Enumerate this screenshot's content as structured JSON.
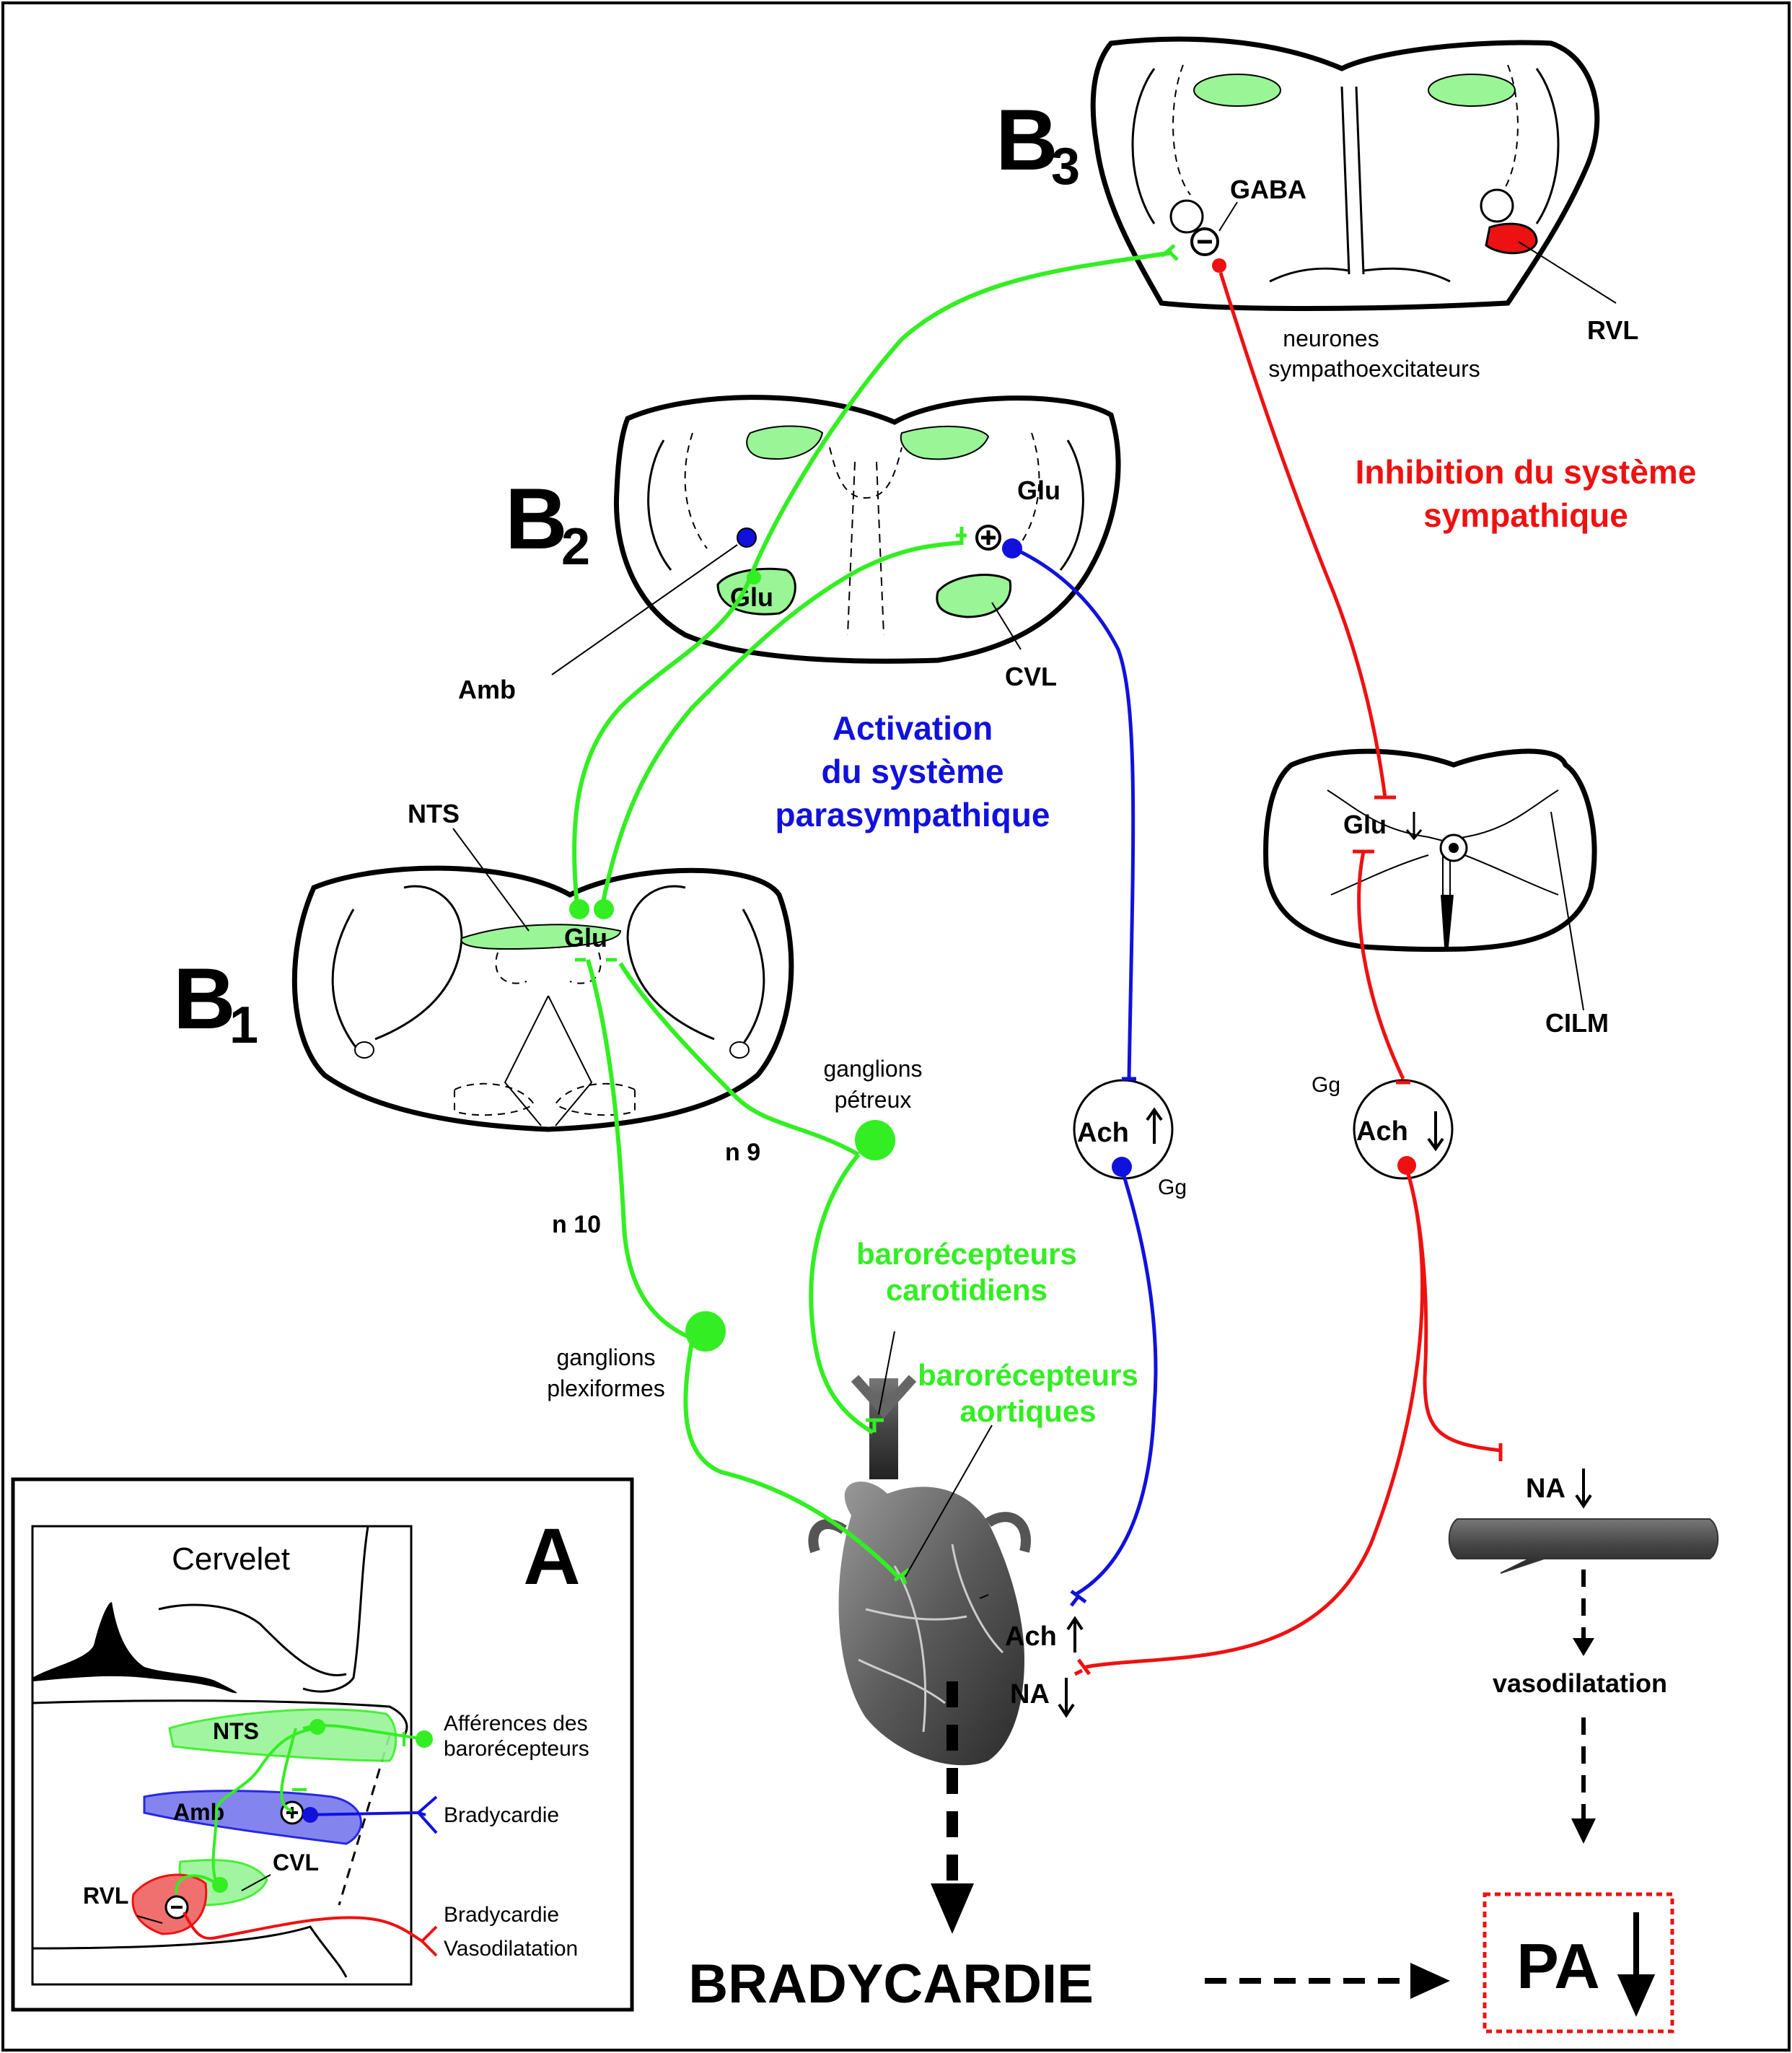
{
  "labels": {
    "b1_letter": "B",
    "b1_sub": "1",
    "b2_letter": "B",
    "b2_sub": "2",
    "b3_letter": "B",
    "b3_sub": "3",
    "a_letter": "A",
    "gaba": "GABA",
    "rvl": "RVL",
    "neurones_line1": "neurones",
    "neurones_line2": "sympathoexcitateurs",
    "inhibition_line1": "Inhibition du système",
    "inhibition_line2": "sympathique",
    "glu_b2": "Glu",
    "glu_b2_cvl": "Glu",
    "cvl": "CVL",
    "amb": "Amb",
    "activation_line1": "Activation",
    "activation_line2": "du système",
    "activation_line3": "parasympathique",
    "nts": "NTS",
    "glu_b1": "Glu",
    "glu_spinal": "Glu",
    "cilm": "CILM",
    "ganglions_petreux_line1": "ganglions",
    "ganglions_petreux_line2": "pétreux",
    "n9": "n 9",
    "n10": "n 10",
    "ach_para": "Ach",
    "gg_para": "Gg",
    "ach_symp": "Ach",
    "gg_symp": "Gg",
    "barorecepteurs_carotidiens_line1": "barorécepteurs",
    "barorecepteurs_carotidiens_line2": "carotidiens",
    "barorecepteurs_aortiques_line1": "barorécepteurs",
    "barorecepteurs_aortiques_line2": "aortiques",
    "ganglions_plexiformes_line1": "ganglions",
    "ganglions_plexiformes_line2": "plexiformes",
    "na_vessel": "NA",
    "ach_heart": "Ach",
    "na_heart": "NA",
    "vasodilatation": "vasodilatation",
    "bradycardie": "BRADYCARDIE",
    "pa": "PA"
  },
  "inset": {
    "cervelet": "Cervelet",
    "nts": "NTS",
    "amb": "Amb",
    "cvl": "CVL",
    "rvl": "RVL",
    "afferences_line1": "Afférences des",
    "afferences_line2": "barorécepteurs",
    "bradycardie_blue": "Bradycardie",
    "bradycardie_red": "Bradycardie",
    "vasodilatation": "Vasodilatation"
  },
  "colors": {
    "green": "#33ee22",
    "green_fill": "#99f596",
    "blue": "#1111dd",
    "red": "#ee1111",
    "black": "#000000"
  }
}
